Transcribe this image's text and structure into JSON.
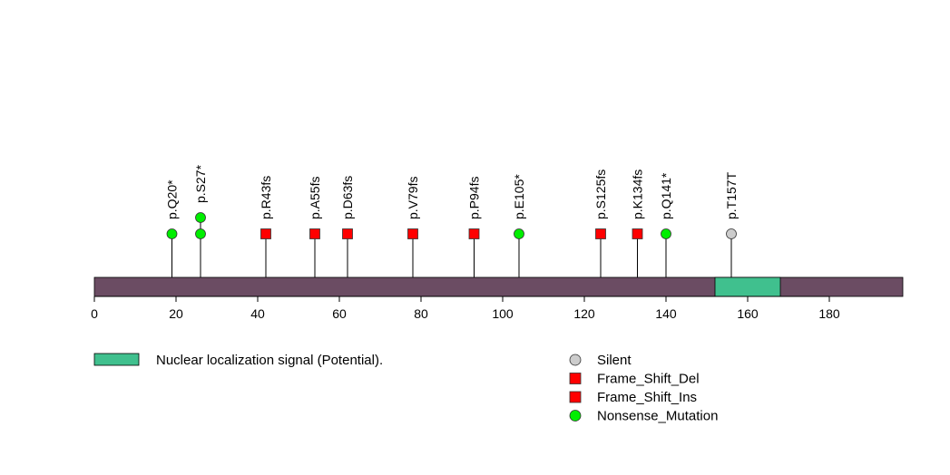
{
  "chart_data": {
    "type": "lollipop",
    "protein_length": 198,
    "x_axis": {
      "ticks": [
        0,
        20,
        40,
        60,
        80,
        100,
        120,
        140,
        160,
        180
      ],
      "min": 0,
      "max": 198
    },
    "protein_color": "#6b4c63",
    "domains": [
      {
        "name": "Nuclear localization signal (Potential).",
        "start": 152,
        "end": 168,
        "color": "#40c08e"
      }
    ],
    "mutations": [
      {
        "label": "p.Q20*",
        "position": 19,
        "type": "Nonsense_Mutation",
        "count": 1
      },
      {
        "label": "p.S27*",
        "position": 26,
        "type": "Nonsense_Mutation",
        "count": 2
      },
      {
        "label": "p.R43fs",
        "position": 42,
        "type": "Frame_Shift_Del",
        "count": 1
      },
      {
        "label": "p.A55fs",
        "position": 54,
        "type": "Frame_Shift_Del",
        "count": 1
      },
      {
        "label": "p.D63fs",
        "position": 62,
        "type": "Frame_Shift_Del",
        "count": 1
      },
      {
        "label": "p.V79fs",
        "position": 78,
        "type": "Frame_Shift_Del",
        "count": 1
      },
      {
        "label": "p.P94fs",
        "position": 93,
        "type": "Frame_Shift_Del",
        "count": 1
      },
      {
        "label": "p.E105*",
        "position": 104,
        "type": "Nonsense_Mutation",
        "count": 1
      },
      {
        "label": "p.S125fs",
        "position": 124,
        "type": "Frame_Shift_Del",
        "count": 1
      },
      {
        "label": "p.K134fs",
        "position": 133,
        "type": "Frame_Shift_Del",
        "count": 1
      },
      {
        "label": "p.Q141*",
        "position": 140,
        "type": "Nonsense_Mutation",
        "count": 1
      },
      {
        "label": "p.T157T",
        "position": 156,
        "type": "Silent",
        "count": 1
      }
    ],
    "legend": [
      {
        "label": "Silent",
        "shape": "circle",
        "color": "#cccccc"
      },
      {
        "label": "Frame_Shift_Del",
        "shape": "square",
        "color": "#ff0000"
      },
      {
        "label": "Frame_Shift_Ins",
        "shape": "square",
        "color": "#ff0000"
      },
      {
        "label": "Nonsense_Mutation",
        "shape": "circle",
        "color": "#00ee00"
      }
    ],
    "domain_legend": [
      {
        "label": "Nuclear localization signal (Potential).",
        "color": "#40c08e"
      }
    ]
  }
}
